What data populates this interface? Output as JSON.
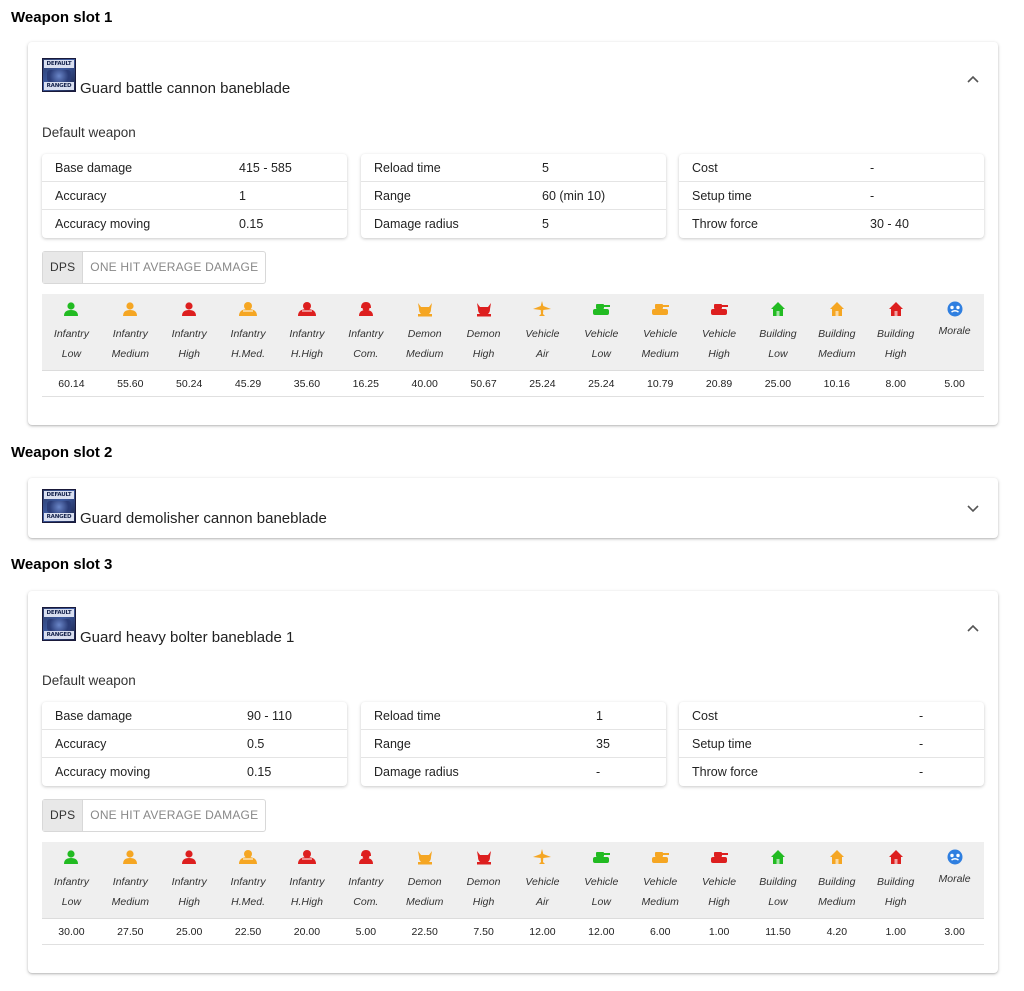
{
  "colors": {
    "green": "#22bb22",
    "orange": "#f5a623",
    "red": "#dd1f1f",
    "blue": "#2f7fe0"
  },
  "slots": [
    {
      "title": "Weapon slot 1",
      "weapon_icon": {
        "top_text": "DEFAULT",
        "bottom_text": "RANGED"
      },
      "weapon_name": "Guard battle cannon baneblade",
      "expanded": true,
      "default_label": "Default weapon",
      "stats": [
        [
          {
            "k": "Base damage",
            "v": "415 - 585"
          },
          {
            "k": "Accuracy",
            "v": "1"
          },
          {
            "k": "Accuracy moving",
            "v": "0.15"
          }
        ],
        [
          {
            "k": "Reload time",
            "v": "5"
          },
          {
            "k": "Range",
            "v": "60 (min 10)"
          },
          {
            "k": "Damage radius",
            "v": "5"
          }
        ],
        [
          {
            "k": "Cost",
            "v": "-"
          },
          {
            "k": "Setup time",
            "v": "-"
          },
          {
            "k": "Throw force",
            "v": "30 - 40"
          }
        ]
      ],
      "toggle": [
        "DPS",
        "ONE HIT AVERAGE DAMAGE"
      ],
      "values": [
        "60.14",
        "55.60",
        "50.24",
        "45.29",
        "35.60",
        "16.25",
        "40.00",
        "50.67",
        "25.24",
        "25.24",
        "10.79",
        "20.89",
        "25.00",
        "10.16",
        "8.00",
        "5.00"
      ]
    },
    {
      "title": "Weapon slot 2",
      "weapon_icon": {
        "top_text": "DEFAULT",
        "bottom_text": "RANGED"
      },
      "weapon_name": "Guard demolisher cannon baneblade",
      "expanded": false
    },
    {
      "title": "Weapon slot 3",
      "weapon_icon": {
        "top_text": "DEFAULT",
        "bottom_text": "RANGED"
      },
      "weapon_name": "Guard heavy bolter baneblade 1",
      "expanded": true,
      "default_label": "Default weapon",
      "stats": [
        [
          {
            "k": "Base damage",
            "v": "90 - 110"
          },
          {
            "k": "Accuracy",
            "v": "0.5"
          },
          {
            "k": "Accuracy moving",
            "v": "0.15"
          }
        ],
        [
          {
            "k": "Reload time",
            "v": "1"
          },
          {
            "k": "Range",
            "v": "35"
          },
          {
            "k": "Damage radius",
            "v": "-"
          }
        ],
        [
          {
            "k": "Cost",
            "v": "-"
          },
          {
            "k": "Setup time",
            "v": "-"
          },
          {
            "k": "Throw force",
            "v": "-"
          }
        ]
      ],
      "toggle": [
        "DPS",
        "ONE HIT AVERAGE DAMAGE"
      ],
      "values": [
        "30.00",
        "27.50",
        "25.00",
        "22.50",
        "20.00",
        "5.00",
        "22.50",
        "7.50",
        "12.00",
        "12.00",
        "6.00",
        "1.00",
        "11.50",
        "4.20",
        "1.00",
        "3.00"
      ]
    }
  ],
  "columns": [
    {
      "l1": "Infantry",
      "l2": "Low",
      "icon": "infantry-icon",
      "color": "green"
    },
    {
      "l1": "Infantry",
      "l2": "Medium",
      "icon": "infantry-icon",
      "color": "orange"
    },
    {
      "l1": "Infantry",
      "l2": "High",
      "icon": "infantry-icon",
      "color": "red"
    },
    {
      "l1": "Infantry",
      "l2": "H.Med.",
      "icon": "heavy-infantry-icon",
      "color": "orange"
    },
    {
      "l1": "Infantry",
      "l2": "H.High",
      "icon": "heavy-infantry-icon",
      "color": "red"
    },
    {
      "l1": "Infantry",
      "l2": "Com.",
      "icon": "commander-icon",
      "color": "red"
    },
    {
      "l1": "Demon",
      "l2": "Medium",
      "icon": "demon-icon",
      "color": "orange"
    },
    {
      "l1": "Demon",
      "l2": "High",
      "icon": "demon-icon",
      "color": "red"
    },
    {
      "l1": "Vehicle",
      "l2": "Air",
      "icon": "aircraft-icon",
      "color": "orange"
    },
    {
      "l1": "Vehicle",
      "l2": "Low",
      "icon": "tank-icon",
      "color": "green"
    },
    {
      "l1": "Vehicle",
      "l2": "Medium",
      "icon": "tank-icon",
      "color": "orange"
    },
    {
      "l1": "Vehicle",
      "l2": "High",
      "icon": "tank-icon",
      "color": "red"
    },
    {
      "l1": "Building",
      "l2": "Low",
      "icon": "building-icon",
      "color": "green"
    },
    {
      "l1": "Building",
      "l2": "Medium",
      "icon": "building-icon",
      "color": "orange"
    },
    {
      "l1": "Building",
      "l2": "High",
      "icon": "building-icon",
      "color": "red"
    },
    {
      "l1": "Morale",
      "l2": "",
      "icon": "morale-icon",
      "color": "blue"
    }
  ]
}
